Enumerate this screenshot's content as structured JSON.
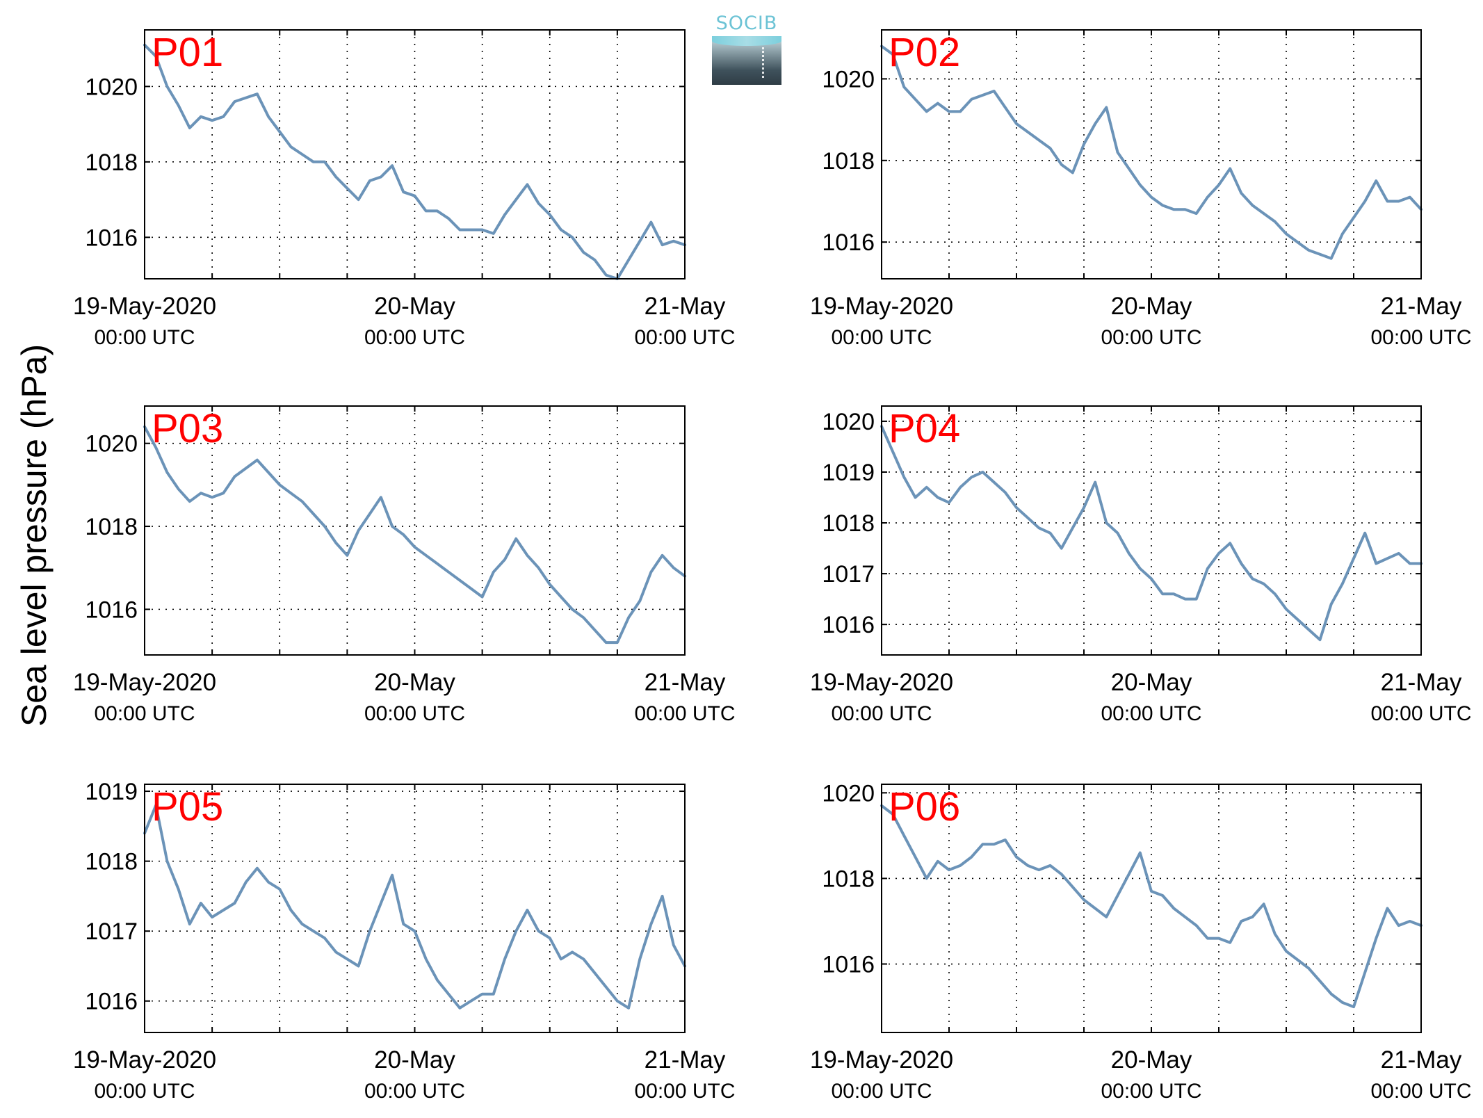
{
  "logo_text": "SOCIB",
  "ylabel": "Sea level pressure (hPa)",
  "colors": {
    "line": "#6b93b8",
    "panel_label": "#ff0000",
    "axis": "#000000",
    "grid": "#000000"
  },
  "chart_data": [
    {
      "type": "line",
      "name": "P01",
      "x_range": [
        "2020-05-19T00:00Z",
        "2020-05-21T00:00Z"
      ],
      "xticks": [
        {
          "label": "19-May-2020",
          "sublabel": "00:00 UTC",
          "t": "2020-05-19T00:00Z"
        },
        {
          "label": "20-May",
          "sublabel": "00:00 UTC",
          "t": "2020-05-20T00:00Z"
        },
        {
          "label": "21-May",
          "sublabel": "00:00 UTC",
          "t": "2020-05-21T00:00Z"
        }
      ],
      "ylim": [
        1014.9,
        1021.5
      ],
      "yticks": [
        1016,
        1018,
        1020
      ],
      "grid": true,
      "x_hours": [
        0,
        1,
        2,
        3,
        4,
        5,
        6,
        7,
        8,
        9,
        10,
        11,
        12,
        13,
        14,
        15,
        16,
        17,
        18,
        19,
        20,
        21,
        22,
        23,
        24,
        25,
        26,
        27,
        28,
        29,
        30,
        31,
        32,
        33,
        34,
        35,
        36,
        37,
        38,
        39,
        40,
        41,
        42,
        43,
        44,
        45,
        46,
        47,
        48
      ],
      "values": [
        1021.1,
        1020.8,
        1020.0,
        1019.5,
        1018.9,
        1019.2,
        1019.1,
        1019.2,
        1019.6,
        1019.7,
        1019.8,
        1019.2,
        1018.8,
        1018.4,
        1018.2,
        1018.0,
        1018.0,
        1017.6,
        1017.3,
        1017.0,
        1017.5,
        1017.6,
        1017.9,
        1017.2,
        1017.1,
        1016.7,
        1016.7,
        1016.5,
        1016.2,
        1016.2,
        1016.2,
        1016.1,
        1016.6,
        1017.0,
        1017.4,
        1016.9,
        1016.6,
        1016.2,
        1016.0,
        1015.6,
        1015.4,
        1015.0,
        1014.9,
        1015.4,
        1015.9,
        1016.4,
        1015.8,
        1015.9,
        1015.8
      ]
    },
    {
      "type": "line",
      "name": "P02",
      "x_range": [
        "2020-05-19T00:00Z",
        "2020-05-21T00:00Z"
      ],
      "xticks": [
        {
          "label": "19-May-2020",
          "sublabel": "00:00 UTC",
          "t": "2020-05-19T00:00Z"
        },
        {
          "label": "20-May",
          "sublabel": "00:00 UTC",
          "t": "2020-05-20T00:00Z"
        },
        {
          "label": "21-May",
          "sublabel": "00:00 UTC",
          "t": "2020-05-21T00:00Z"
        }
      ],
      "ylim": [
        1015.1,
        1021.2
      ],
      "yticks": [
        1016,
        1018,
        1020
      ],
      "grid": true,
      "x_hours": [
        0,
        1,
        2,
        3,
        4,
        5,
        6,
        7,
        8,
        9,
        10,
        11,
        12,
        13,
        14,
        15,
        16,
        17,
        18,
        19,
        20,
        21,
        22,
        23,
        24,
        25,
        26,
        27,
        28,
        29,
        30,
        31,
        32,
        33,
        34,
        35,
        36,
        37,
        38,
        39,
        40,
        41,
        42,
        43,
        44,
        45,
        46,
        47,
        48
      ],
      "values": [
        1020.8,
        1020.6,
        1019.8,
        1019.5,
        1019.2,
        1019.4,
        1019.2,
        1019.2,
        1019.5,
        1019.6,
        1019.7,
        1019.3,
        1018.9,
        1018.7,
        1018.5,
        1018.3,
        1017.9,
        1017.7,
        1018.4,
        1018.9,
        1019.3,
        1018.2,
        1017.8,
        1017.4,
        1017.1,
        1016.9,
        1016.8,
        1016.8,
        1016.7,
        1017.1,
        1017.4,
        1017.8,
        1017.2,
        1016.9,
        1016.7,
        1016.5,
        1016.2,
        1016.0,
        1015.8,
        1015.7,
        1015.6,
        1016.2,
        1016.6,
        1017.0,
        1017.5,
        1017.0,
        1017.0,
        1017.1,
        1016.8
      ]
    },
    {
      "type": "line",
      "name": "P03",
      "x_range": [
        "2020-05-19T00:00Z",
        "2020-05-21T00:00Z"
      ],
      "xticks": [
        {
          "label": "19-May-2020",
          "sublabel": "00:00 UTC",
          "t": "2020-05-19T00:00Z"
        },
        {
          "label": "20-May",
          "sublabel": "00:00 UTC",
          "t": "2020-05-20T00:00Z"
        },
        {
          "label": "21-May",
          "sublabel": "00:00 UTC",
          "t": "2020-05-21T00:00Z"
        }
      ],
      "ylim": [
        1014.9,
        1020.9
      ],
      "yticks": [
        1016,
        1018,
        1020
      ],
      "grid": true,
      "x_hours": [
        0,
        1,
        2,
        3,
        4,
        5,
        6,
        7,
        8,
        9,
        10,
        11,
        12,
        13,
        14,
        15,
        16,
        17,
        18,
        19,
        20,
        21,
        22,
        23,
        24,
        25,
        26,
        27,
        28,
        29,
        30,
        31,
        32,
        33,
        34,
        35,
        36,
        37,
        38,
        39,
        40,
        41,
        42,
        43,
        44,
        45,
        46,
        47,
        48
      ],
      "values": [
        1020.4,
        1019.9,
        1019.3,
        1018.9,
        1018.6,
        1018.8,
        1018.7,
        1018.8,
        1019.2,
        1019.4,
        1019.6,
        1019.3,
        1019.0,
        1018.8,
        1018.6,
        1018.3,
        1018.0,
        1017.6,
        1017.3,
        1017.9,
        1018.3,
        1018.7,
        1018.0,
        1017.8,
        1017.5,
        1017.3,
        1017.1,
        1016.9,
        1016.7,
        1016.5,
        1016.3,
        1016.9,
        1017.2,
        1017.7,
        1017.3,
        1017.0,
        1016.6,
        1016.3,
        1016.0,
        1015.8,
        1015.5,
        1015.2,
        1015.2,
        1015.8,
        1016.2,
        1016.9,
        1017.3,
        1017.0,
        1016.8
      ]
    },
    {
      "type": "line",
      "name": "P04",
      "x_range": [
        "2020-05-19T00:00Z",
        "2020-05-21T00:00Z"
      ],
      "xticks": [
        {
          "label": "19-May-2020",
          "sublabel": "00:00 UTC",
          "t": "2020-05-19T00:00Z"
        },
        {
          "label": "20-May",
          "sublabel": "00:00 UTC",
          "t": "2020-05-20T00:00Z"
        },
        {
          "label": "21-May",
          "sublabel": "00:00 UTC",
          "t": "2020-05-21T00:00Z"
        }
      ],
      "ylim": [
        1015.4,
        1020.3
      ],
      "yticks": [
        1016,
        1017,
        1018,
        1019,
        1020
      ],
      "grid": true,
      "x_hours": [
        0,
        1,
        2,
        3,
        4,
        5,
        6,
        7,
        8,
        9,
        10,
        11,
        12,
        13,
        14,
        15,
        16,
        17,
        18,
        19,
        20,
        21,
        22,
        23,
        24,
        25,
        26,
        27,
        28,
        29,
        30,
        31,
        32,
        33,
        34,
        35,
        36,
        37,
        38,
        39,
        40,
        41,
        42,
        43,
        44,
        45,
        46,
        47,
        48
      ],
      "values": [
        1019.9,
        1019.4,
        1018.9,
        1018.5,
        1018.7,
        1018.5,
        1018.4,
        1018.7,
        1018.9,
        1019.0,
        1018.8,
        1018.6,
        1018.3,
        1018.1,
        1017.9,
        1017.8,
        1017.5,
        1017.9,
        1018.3,
        1018.8,
        1018.0,
        1017.8,
        1017.4,
        1017.1,
        1016.9,
        1016.6,
        1016.6,
        1016.5,
        1016.5,
        1017.1,
        1017.4,
        1017.6,
        1017.2,
        1016.9,
        1016.8,
        1016.6,
        1016.3,
        1016.1,
        1015.9,
        1015.7,
        1016.4,
        1016.8,
        1017.3,
        1017.8,
        1017.2,
        1017.3,
        1017.4,
        1017.2,
        1017.2
      ]
    },
    {
      "type": "line",
      "name": "P05",
      "x_range": [
        "2020-05-19T00:00Z",
        "2020-05-21T00:00Z"
      ],
      "xticks": [
        {
          "label": "19-May-2020",
          "sublabel": "00:00 UTC",
          "t": "2020-05-19T00:00Z"
        },
        {
          "label": "20-May",
          "sublabel": "00:00 UTC",
          "t": "2020-05-20T00:00Z"
        },
        {
          "label": "21-May",
          "sublabel": "00:00 UTC",
          "t": "2020-05-21T00:00Z"
        }
      ],
      "ylim": [
        1015.55,
        1019.1
      ],
      "yticks": [
        1016,
        1017,
        1018,
        1019
      ],
      "grid": true,
      "x_hours": [
        0,
        1,
        2,
        3,
        4,
        5,
        6,
        7,
        8,
        9,
        10,
        11,
        12,
        13,
        14,
        15,
        16,
        17,
        18,
        19,
        20,
        21,
        22,
        23,
        24,
        25,
        26,
        27,
        28,
        29,
        30,
        31,
        32,
        33,
        34,
        35,
        36,
        37,
        38,
        39,
        40,
        41,
        42,
        43,
        44,
        45,
        46,
        47,
        48
      ],
      "values": [
        1018.4,
        1018.8,
        1018.0,
        1017.6,
        1017.1,
        1017.4,
        1017.2,
        1017.3,
        1017.4,
        1017.7,
        1017.9,
        1017.7,
        1017.6,
        1017.3,
        1017.1,
        1017.0,
        1016.9,
        1016.7,
        1016.6,
        1016.5,
        1017.0,
        1017.4,
        1017.8,
        1017.1,
        1017.0,
        1016.6,
        1016.3,
        1016.1,
        1015.9,
        1016.0,
        1016.1,
        1016.1,
        1016.6,
        1017.0,
        1017.3,
        1017.0,
        1016.9,
        1016.6,
        1016.7,
        1016.6,
        1016.4,
        1016.2,
        1016.0,
        1015.9,
        1016.6,
        1017.1,
        1017.5,
        1016.8,
        1016.5
      ]
    },
    {
      "type": "line",
      "name": "P06",
      "x_range": [
        "2020-05-19T00:00Z",
        "2020-05-21T00:00Z"
      ],
      "xticks": [
        {
          "label": "19-May-2020",
          "sublabel": "00:00 UTC",
          "t": "2020-05-19T00:00Z"
        },
        {
          "label": "20-May",
          "sublabel": "00:00 UTC",
          "t": "2020-05-20T00:00Z"
        },
        {
          "label": "21-May",
          "sublabel": "00:00 UTC",
          "t": "2020-05-21T00:00Z"
        }
      ],
      "ylim": [
        1014.4,
        1020.2
      ],
      "yticks": [
        1016,
        1018,
        1020
      ],
      "grid": true,
      "x_hours": [
        0,
        1,
        2,
        3,
        4,
        5,
        6,
        7,
        8,
        9,
        10,
        11,
        12,
        13,
        14,
        15,
        16,
        17,
        18,
        19,
        20,
        21,
        22,
        23,
        24,
        25,
        26,
        27,
        28,
        29,
        30,
        31,
        32,
        33,
        34,
        35,
        36,
        37,
        38,
        39,
        40,
        41,
        42,
        43,
        44,
        45,
        46,
        47,
        48
      ],
      "values": [
        1019.7,
        1019.5,
        1019.0,
        1018.5,
        1018.0,
        1018.4,
        1018.2,
        1018.3,
        1018.5,
        1018.8,
        1018.8,
        1018.9,
        1018.5,
        1018.3,
        1018.2,
        1018.3,
        1018.1,
        1017.8,
        1017.5,
        1017.3,
        1017.1,
        1017.6,
        1018.1,
        1018.6,
        1017.7,
        1017.6,
        1017.3,
        1017.1,
        1016.9,
        1016.6,
        1016.6,
        1016.5,
        1017.0,
        1017.1,
        1017.4,
        1016.7,
        1016.3,
        1016.1,
        1015.9,
        1015.6,
        1015.3,
        1015.1,
        1015.0,
        1015.8,
        1016.6,
        1017.3,
        1016.9,
        1017.0,
        1016.9
      ]
    }
  ]
}
